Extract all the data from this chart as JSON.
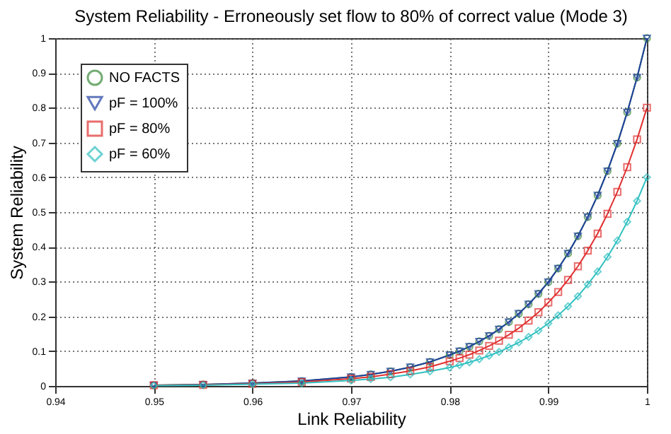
{
  "chart_data": {
    "type": "line",
    "title": "System Reliability - Erroneously set flow to 80% of correct value (Mode 3)",
    "xlabel": "Link Reliability",
    "ylabel": "System Reliability",
    "x": [
      0.95,
      0.955,
      0.96,
      0.965,
      0.97,
      0.972,
      0.974,
      0.976,
      0.978,
      0.98,
      0.981,
      0.982,
      0.983,
      0.984,
      0.985,
      0.986,
      0.987,
      0.988,
      0.989,
      0.99,
      0.991,
      0.992,
      0.993,
      0.994,
      0.995,
      0.996,
      0.997,
      0.998,
      0.999,
      1.0
    ],
    "series": [
      {
        "name": "NO FACTS",
        "color": "#3a8a3a",
        "marker": "circle",
        "values": [
          0.002,
          0.004,
          0.008,
          0.014,
          0.026,
          0.033,
          0.042,
          0.054,
          0.069,
          0.089,
          0.1,
          0.113,
          0.128,
          0.144,
          0.163,
          0.184,
          0.208,
          0.235,
          0.265,
          0.299,
          0.338,
          0.381,
          0.431,
          0.486,
          0.548,
          0.618,
          0.697,
          0.787,
          0.887,
          1.0
        ]
      },
      {
        "name": "pF = 100%",
        "color": "#2040a0",
        "marker": "triangle",
        "values": [
          0.002,
          0.004,
          0.008,
          0.014,
          0.026,
          0.033,
          0.042,
          0.054,
          0.069,
          0.089,
          0.1,
          0.113,
          0.128,
          0.144,
          0.163,
          0.184,
          0.208,
          0.235,
          0.265,
          0.299,
          0.338,
          0.381,
          0.431,
          0.486,
          0.548,
          0.618,
          0.697,
          0.787,
          0.887,
          1.0
        ]
      },
      {
        "name": "pF = 80%",
        "color": "#e03030",
        "marker": "square",
        "values": [
          0.002,
          0.003,
          0.006,
          0.011,
          0.021,
          0.026,
          0.034,
          0.043,
          0.055,
          0.071,
          0.08,
          0.09,
          0.102,
          0.115,
          0.13,
          0.147,
          0.166,
          0.188,
          0.212,
          0.24,
          0.27,
          0.305,
          0.344,
          0.389,
          0.438,
          0.495,
          0.558,
          0.629,
          0.709,
          0.8
        ]
      },
      {
        "name": "pF = 60%",
        "color": "#30c0c0",
        "marker": "diamond",
        "values": [
          0.001,
          0.002,
          0.005,
          0.008,
          0.016,
          0.02,
          0.025,
          0.033,
          0.042,
          0.053,
          0.06,
          0.068,
          0.077,
          0.087,
          0.098,
          0.111,
          0.125,
          0.141,
          0.159,
          0.18,
          0.203,
          0.229,
          0.258,
          0.292,
          0.329,
          0.371,
          0.418,
          0.472,
          0.532,
          0.6
        ]
      }
    ],
    "xlim": [
      0.94,
      1.0
    ],
    "xticks": [
      0.94,
      0.95,
      0.96,
      0.97,
      0.98,
      0.99,
      1
    ],
    "ylim": [
      0,
      1
    ],
    "yticks": [
      0,
      0.1,
      0.2,
      0.3,
      0.4,
      0.5,
      0.6,
      0.7,
      0.8,
      0.9,
      1
    ],
    "grid": true,
    "legend": "top left",
    "line_style": "solid"
  }
}
